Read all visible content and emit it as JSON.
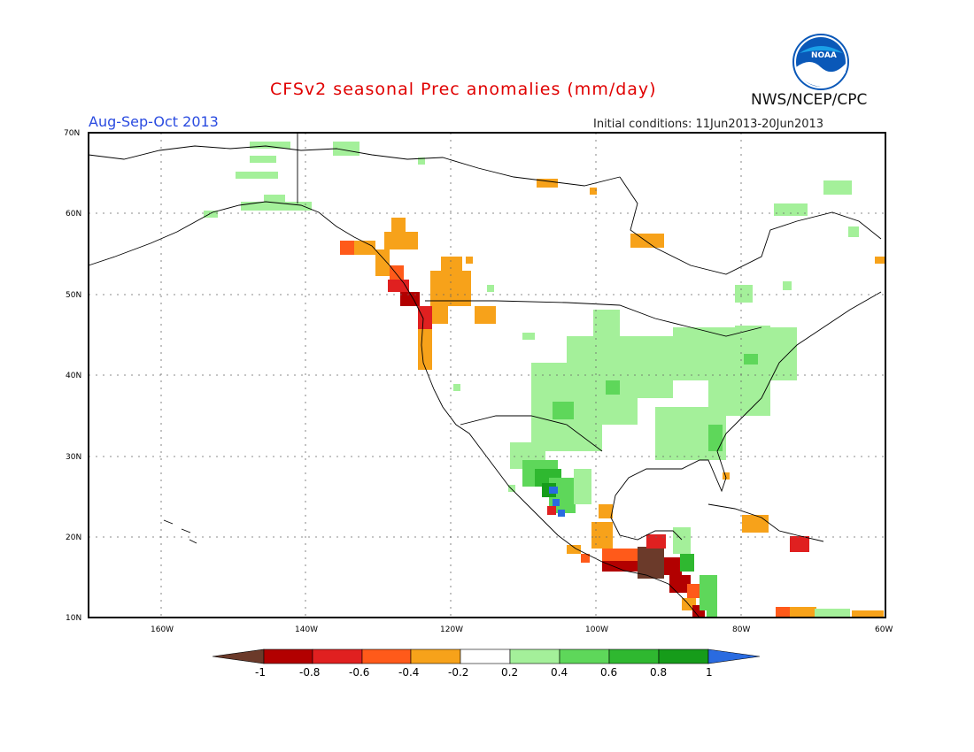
{
  "header": {
    "title": "CFSv2 seasonal Prec anomalies (mm/day)",
    "period": "Aug-Sep-Oct 2013",
    "initial_conditions": "Initial conditions: 11Jun2013-20Jun2013",
    "agency": "NWS/NCEP/CPC",
    "logo_text": "NOAA"
  },
  "map": {
    "lat_labels": [
      "70N",
      "60N",
      "50N",
      "40N",
      "30N",
      "20N",
      "10N"
    ],
    "lon_labels": [
      "160W",
      "140W",
      "120W",
      "100W",
      "80W",
      "60W"
    ],
    "lat_values": [
      70,
      60,
      50,
      40,
      30,
      20,
      10
    ],
    "lon_values": [
      -160,
      -140,
      -120,
      -100,
      -80,
      -60
    ],
    "extent": {
      "lon_min": -170,
      "lon_max": -60,
      "lat_min": 10,
      "lat_max": 70
    }
  },
  "colorbar": {
    "labels": [
      "-1",
      "-0.8",
      "-0.6",
      "-0.4",
      "-0.2",
      "0.2",
      "0.4",
      "0.6",
      "0.8",
      "1"
    ],
    "colors": {
      "lt_-1": "#6b3a2a",
      "-1_-0.8": "#b20000",
      "-0.8_-0.6": "#e02020",
      "-0.6_-0.4": "#ff5a1a",
      "-0.4_-0.2": "#f7a21a",
      "-0.2_0.2": "#ffffff",
      "0.2_0.4": "#a4f09a",
      "0.4_0.6": "#5ed75a",
      "0.6_0.8": "#2fb830",
      "0.8_1": "#169c1a",
      "gt_1": "#2a6be0"
    }
  },
  "colors": {
    "title": "#e00000",
    "period": "#2a4be0",
    "grid": "#666666"
  }
}
